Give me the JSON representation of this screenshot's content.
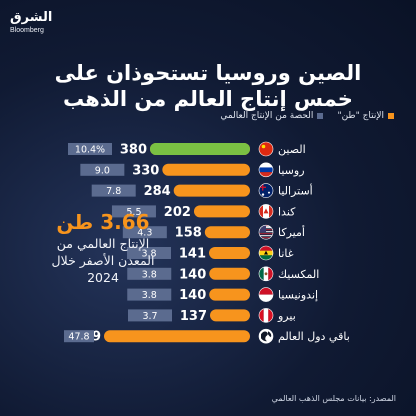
{
  "brand": {
    "name": "الشرق",
    "sub": "Bloomberg"
  },
  "title": [
    "الصين وروسيا تستحوذان على",
    "خمس إنتاج العالم من الذهب"
  ],
  "legend": {
    "production": "الإنتاج \"طن\"",
    "share": "الحصة من الإنتاج العالمي"
  },
  "callout": {
    "value": "3.66 طن",
    "desc": [
      "الإنتاج العالمي من",
      "المعدن الأصفر خلال",
      "2024"
    ]
  },
  "source": "المصدر: بيانات مجلس الذهب العالمي",
  "colors": {
    "bar": "#f7941d",
    "bar_top": "#7ac143",
    "share_box": "#5b6b8f",
    "world_bar": "#f7941d"
  },
  "chart_data": {
    "type": "bar",
    "orientation": "horizontal",
    "categories": [
      "الصين",
      "روسيا",
      "أستراليا",
      "كندا",
      "أميركا",
      "غانا",
      "المكسيك",
      "إندونيسيا",
      "بيرو",
      "باقي دول العالم"
    ],
    "flags": [
      "china-flag-icon",
      "russia-flag-icon",
      "australia-flag-icon",
      "canada-flag-icon",
      "usa-flag-icon",
      "ghana-flag-icon",
      "mexico-flag-icon",
      "indonesia-flag-icon",
      "peru-flag-icon",
      "globe-icon"
    ],
    "series": [
      {
        "name": "الإنتاج \"طن\"",
        "values": [
          380,
          330,
          284,
          202,
          158,
          141,
          140,
          140,
          137,
          1749
        ]
      },
      {
        "name": "الحصة من الإنتاج العالمي",
        "values": [
          10.4,
          9.0,
          7.8,
          5.5,
          4.3,
          3.8,
          3.8,
          3.8,
          3.7,
          47.8
        ]
      }
    ],
    "share_labels": [
      "10.4%",
      "9.0",
      "7.8",
      "5.5",
      "4.3",
      "3.8",
      "3.8",
      "3.8",
      "3.7",
      "47.8"
    ]
  }
}
